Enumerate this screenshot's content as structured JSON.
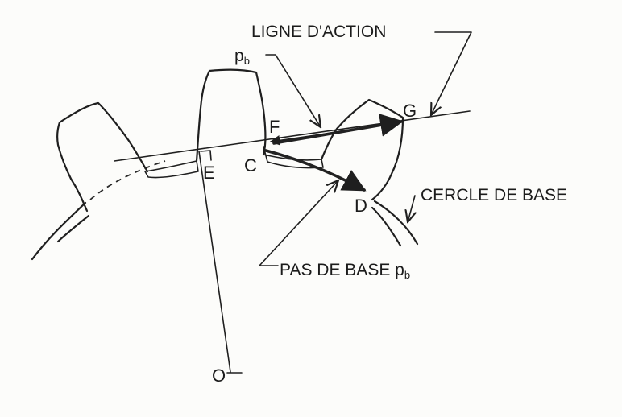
{
  "labels": {
    "line_of_action": "LIGNE D'ACTION",
    "pitch_top": "p",
    "pitch_top_sub": "b",
    "base_circle": "CERCLE DE BASE",
    "base_pitch": "PAS DE BASE p",
    "base_pitch_sub": "b"
  },
  "points": {
    "E": "E",
    "C": "C",
    "F": "F",
    "G": "G",
    "D": "D",
    "O": "O"
  }
}
